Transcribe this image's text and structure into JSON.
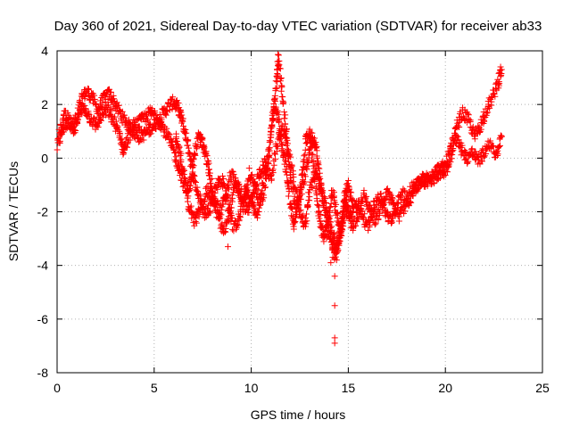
{
  "chart_data": {
    "type": "scatter",
    "title": "Day 360 of 2021, Sidereal Day-to-day VTEC variation (SDTVAR) for receiver ab33",
    "xlabel": "GPS time / hours",
    "ylabel": "SDTVAR / TECUs",
    "xlim": [
      0,
      25
    ],
    "ylim": [
      -8,
      4
    ],
    "xticks": [
      0,
      5,
      10,
      15,
      20,
      25
    ],
    "yticks": [
      -8,
      -6,
      -4,
      -2,
      0,
      2,
      4
    ],
    "grid": true,
    "marker": "+",
    "series": [
      {
        "name": "SDTVAR",
        "color": "#ff0000",
        "tracks": [
          [
            [
              0.0,
              0.4
            ],
            [
              0.3,
              1.1
            ],
            [
              0.6,
              1.4
            ],
            [
              0.9,
              0.9
            ],
            [
              1.2,
              2.1
            ],
            [
              1.5,
              2.5
            ],
            [
              1.8,
              2.3
            ],
            [
              2.1,
              1.8
            ],
            [
              2.4,
              2.2
            ],
            [
              2.7,
              2.4
            ],
            [
              3.0,
              2.0
            ],
            [
              3.3,
              1.6
            ],
            [
              3.6,
              1.3
            ],
            [
              3.9,
              1.0
            ],
            [
              4.2,
              0.8
            ],
            [
              4.5,
              0.9
            ],
            [
              4.8,
              1.1
            ],
            [
              5.1,
              1.3
            ],
            [
              5.4,
              1.6
            ],
            [
              5.7,
              1.9
            ],
            [
              6.0,
              2.1
            ],
            [
              6.2,
              1.9
            ],
            [
              6.4,
              1.5
            ],
            [
              6.6,
              0.9
            ],
            [
              6.8,
              0.3
            ],
            [
              7.0,
              -0.6
            ],
            [
              7.3,
              -1.4
            ],
            [
              7.6,
              -2.1
            ],
            [
              7.9,
              -1.8
            ],
            [
              8.2,
              -1.0
            ],
            [
              8.5,
              -0.8
            ],
            [
              8.8,
              -1.6
            ],
            [
              9.1,
              -2.6
            ],
            [
              9.4,
              -2.2
            ],
            [
              9.7,
              -1.2
            ],
            [
              10.0,
              -1.6
            ],
            [
              10.3,
              -2.2
            ],
            [
              10.6,
              -1.0
            ],
            [
              10.9,
              0.2
            ],
            [
              11.1,
              1.6
            ],
            [
              11.3,
              2.8
            ],
            [
              11.4,
              3.8
            ],
            [
              11.6,
              2.4
            ],
            [
              11.8,
              1.0
            ],
            [
              12.0,
              -0.6
            ],
            [
              12.3,
              -1.8
            ],
            [
              12.6,
              -1.2
            ],
            [
              12.9,
              -0.2
            ],
            [
              13.1,
              0.8
            ],
            [
              13.3,
              0.6
            ],
            [
              13.5,
              -0.6
            ],
            [
              13.7,
              -1.6
            ],
            [
              13.9,
              -2.4
            ],
            [
              14.1,
              -3.0
            ],
            [
              14.3,
              -3.6
            ],
            [
              14.5,
              -3.2
            ],
            [
              14.7,
              -2.4
            ],
            [
              14.9,
              -1.6
            ],
            [
              15.2,
              -2.6
            ],
            [
              15.5,
              -2.1
            ],
            [
              15.8,
              -1.4
            ],
            [
              16.1,
              -1.9
            ],
            [
              16.4,
              -2.3
            ],
            [
              16.7,
              -1.8
            ],
            [
              17.0,
              -1.3
            ],
            [
              17.3,
              -1.7
            ],
            [
              17.6,
              -2.2
            ],
            [
              17.9,
              -1.8
            ],
            [
              18.2,
              -1.2
            ],
            [
              18.5,
              -1.0
            ],
            [
              18.8,
              -0.8
            ],
            [
              19.1,
              -0.7
            ],
            [
              19.4,
              -0.5
            ],
            [
              19.7,
              -0.4
            ],
            [
              20.0,
              -0.3
            ],
            [
              20.3,
              0.4
            ],
            [
              20.6,
              1.2
            ],
            [
              20.9,
              1.7
            ],
            [
              21.2,
              1.4
            ],
            [
              21.5,
              0.8
            ],
            [
              21.8,
              1.2
            ],
            [
              22.1,
              1.8
            ],
            [
              22.4,
              2.2
            ],
            [
              22.7,
              2.8
            ],
            [
              22.9,
              3.3
            ]
          ],
          [
            [
              0.1,
              0.9
            ],
            [
              0.4,
              1.6
            ],
            [
              0.8,
              1.2
            ],
            [
              1.1,
              1.6
            ],
            [
              1.4,
              1.9
            ],
            [
              1.7,
              1.5
            ],
            [
              2.0,
              1.2
            ],
            [
              2.3,
              1.6
            ],
            [
              2.6,
              1.8
            ],
            [
              2.9,
              1.4
            ],
            [
              3.2,
              0.9
            ],
            [
              3.4,
              0.3
            ],
            [
              3.6,
              0.6
            ],
            [
              3.9,
              1.2
            ],
            [
              4.2,
              1.3
            ],
            [
              4.5,
              1.5
            ],
            [
              4.8,
              1.7
            ],
            [
              5.1,
              1.6
            ],
            [
              5.4,
              1.2
            ],
            [
              5.7,
              0.8
            ],
            [
              6.0,
              0.3
            ],
            [
              6.2,
              -0.2
            ],
            [
              6.5,
              -0.9
            ],
            [
              6.8,
              -1.8
            ],
            [
              7.1,
              -2.4
            ],
            [
              7.4,
              -1.9
            ],
            [
              7.7,
              -1.2
            ],
            [
              8.0,
              -1.5
            ],
            [
              8.3,
              -2.2
            ],
            [
              8.6,
              -2.8
            ],
            [
              8.9,
              -1.9
            ],
            [
              9.2,
              -1.0
            ],
            [
              9.5,
              -1.4
            ],
            [
              9.8,
              -2.0
            ],
            [
              10.1,
              -1.4
            ],
            [
              10.4,
              -0.6
            ],
            [
              10.7,
              -0.2
            ],
            [
              11.0,
              -0.8
            ],
            [
              11.3,
              0.4
            ],
            [
              11.6,
              1.2
            ],
            [
              11.9,
              0.2
            ],
            [
              12.2,
              -0.8
            ],
            [
              12.5,
              -2.0
            ],
            [
              12.8,
              -2.5
            ],
            [
              13.0,
              -1.2
            ],
            [
              13.3,
              -0.4
            ],
            [
              13.6,
              -1.2
            ],
            [
              13.9,
              -2.0
            ],
            [
              14.2,
              -2.8
            ],
            [
              14.4,
              -3.4
            ],
            [
              14.6,
              -2.6
            ],
            [
              14.8,
              -1.8
            ],
            [
              15.1,
              -2.2
            ],
            [
              15.4,
              -1.6
            ],
            [
              15.7,
              -2.0
            ],
            [
              16.0,
              -2.6
            ],
            [
              16.3,
              -1.8
            ],
            [
              16.6,
              -1.4
            ],
            [
              16.9,
              -2.0
            ],
            [
              17.2,
              -2.4
            ],
            [
              17.5,
              -1.8
            ],
            [
              17.8,
              -1.3
            ],
            [
              18.1,
              -1.6
            ],
            [
              18.4,
              -1.2
            ],
            [
              18.7,
              -0.9
            ],
            [
              19.0,
              -0.9
            ],
            [
              19.3,
              -0.8
            ],
            [
              19.6,
              -0.6
            ],
            [
              19.9,
              -0.5
            ],
            [
              20.2,
              -0.2
            ],
            [
              20.5,
              0.8
            ],
            [
              20.8,
              0.4
            ],
            [
              21.1,
              0.0
            ],
            [
              21.4,
              0.2
            ],
            [
              21.7,
              -0.1
            ],
            [
              22.0,
              0.2
            ],
            [
              22.3,
              0.6
            ],
            [
              22.6,
              0.0
            ],
            [
              22.9,
              0.8
            ]
          ],
          [
            [
              6.1,
              0.8
            ],
            [
              6.3,
              0.2
            ],
            [
              6.5,
              -0.5
            ],
            [
              6.7,
              -1.2
            ],
            [
              6.9,
              -0.8
            ],
            [
              7.1,
              0.2
            ],
            [
              7.3,
              0.8
            ],
            [
              7.5,
              0.5
            ],
            [
              7.7,
              0.0
            ],
            [
              7.9,
              -0.8
            ],
            [
              8.1,
              -1.6
            ],
            [
              8.4,
              -2.0
            ],
            [
              8.7,
              -1.4
            ],
            [
              9.0,
              -0.6
            ],
            [
              9.3,
              -1.0
            ],
            [
              9.6,
              -1.8
            ],
            [
              9.9,
              -0.6
            ],
            [
              10.2,
              -1.0
            ],
            [
              10.5,
              -1.8
            ],
            [
              10.8,
              -0.6
            ],
            [
              11.0,
              0.8
            ],
            [
              11.2,
              2.0
            ],
            [
              11.4,
              1.4
            ],
            [
              11.6,
              0.4
            ],
            [
              11.8,
              -0.4
            ],
            [
              12.0,
              -1.6
            ],
            [
              12.2,
              -2.6
            ],
            [
              12.4,
              -1.8
            ],
            [
              12.6,
              -0.8
            ],
            [
              12.8,
              0.6
            ],
            [
              13.0,
              1.0
            ],
            [
              13.2,
              -0.2
            ],
            [
              13.4,
              -1.6
            ],
            [
              13.6,
              -2.6
            ],
            [
              13.8,
              -3.0
            ],
            [
              14.0,
              -2.2
            ],
            [
              14.2,
              -1.2
            ],
            [
              14.4,
              -2.0
            ],
            [
              14.6,
              -3.0
            ],
            [
              14.8,
              -1.4
            ],
            [
              15.0,
              -1.0
            ],
            [
              15.3,
              -1.8
            ]
          ]
        ],
        "outliers": [
          [
            8.8,
            -3.3
          ],
          [
            14.3,
            -4.4
          ],
          [
            14.3,
            -5.5
          ],
          [
            14.3,
            -6.7
          ],
          [
            14.3,
            -6.9
          ],
          [
            14.1,
            -3.9
          ],
          [
            14.2,
            -3.7
          ],
          [
            14.4,
            -3.8
          ]
        ]
      }
    ]
  }
}
